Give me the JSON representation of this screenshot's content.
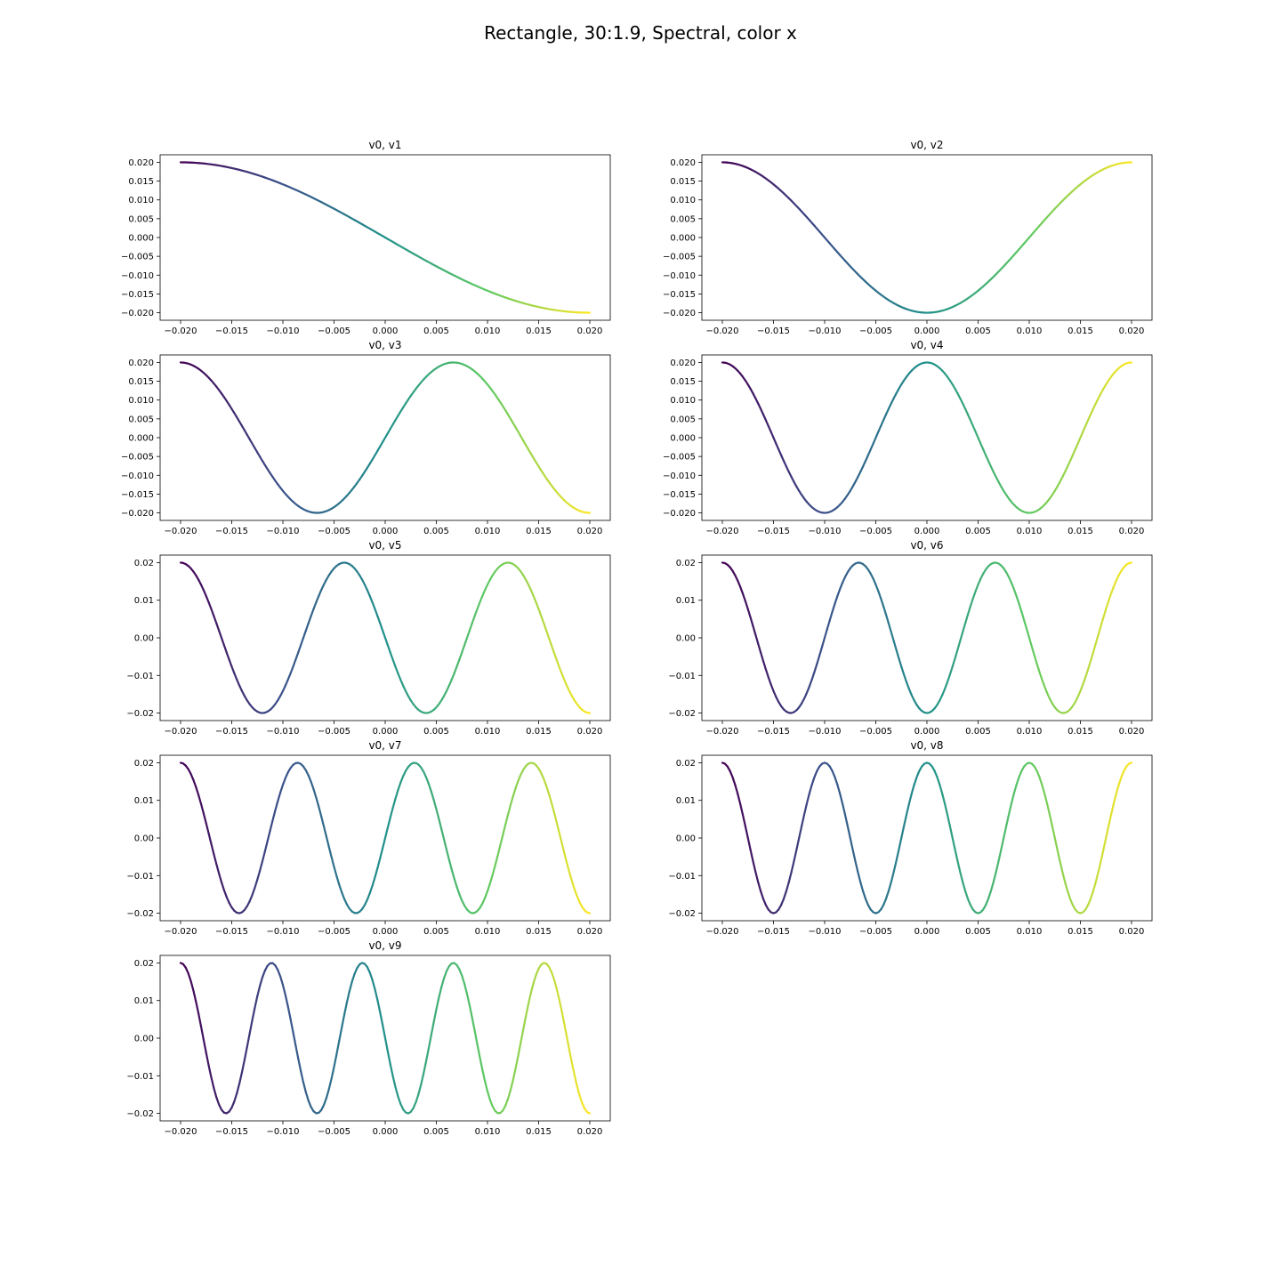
{
  "figure": {
    "title": "Rectangle, 30:1.9, Spectral, color x"
  },
  "colormap": {
    "name": "viridis",
    "stops": [
      "#440154",
      "#3b528b",
      "#21918c",
      "#5ec962",
      "#fde725"
    ]
  },
  "chart_data": [
    {
      "type": "line",
      "title": "v0, v1",
      "mode": 1,
      "xlim": [
        -0.022,
        0.022
      ],
      "ylim": [
        -0.022,
        0.022
      ],
      "x_ticks": [
        "-0.020",
        "-0.015",
        "-0.010",
        "-0.005",
        "0.000",
        "0.005",
        "0.010",
        "0.015",
        "0.020"
      ],
      "x_tick_values": [
        -0.02,
        -0.015,
        -0.01,
        -0.005,
        0.0,
        0.005,
        0.01,
        0.015,
        0.02
      ],
      "y_ticks": [
        "0.020",
        "0.015",
        "0.010",
        "0.005",
        "0.000",
        "-0.005",
        "-0.010",
        "-0.015",
        "-0.020"
      ],
      "y_tick_values": [
        0.02,
        0.015,
        0.01,
        0.005,
        0.0,
        -0.005,
        -0.01,
        -0.015,
        -0.02
      ],
      "amplitude": 0.02,
      "color": "x"
    },
    {
      "type": "line",
      "title": "v0, v2",
      "mode": 2,
      "xlim": [
        -0.022,
        0.022
      ],
      "ylim": [
        -0.022,
        0.022
      ],
      "x_ticks": [
        "-0.020",
        "-0.015",
        "-0.010",
        "-0.005",
        "0.000",
        "0.005",
        "0.010",
        "0.015",
        "0.020"
      ],
      "x_tick_values": [
        -0.02,
        -0.015,
        -0.01,
        -0.005,
        0.0,
        0.005,
        0.01,
        0.015,
        0.02
      ],
      "y_ticks": [
        "0.020",
        "0.015",
        "0.010",
        "0.005",
        "0.000",
        "-0.005",
        "-0.010",
        "-0.015",
        "-0.020"
      ],
      "y_tick_values": [
        0.02,
        0.015,
        0.01,
        0.005,
        0.0,
        -0.005,
        -0.01,
        -0.015,
        -0.02
      ],
      "amplitude": 0.02,
      "color": "x"
    },
    {
      "type": "line",
      "title": "v0, v3",
      "mode": 3,
      "xlim": [
        -0.022,
        0.022
      ],
      "ylim": [
        -0.022,
        0.022
      ],
      "x_ticks": [
        "-0.020",
        "-0.015",
        "-0.010",
        "-0.005",
        "0.000",
        "0.005",
        "0.010",
        "0.015",
        "0.020"
      ],
      "x_tick_values": [
        -0.02,
        -0.015,
        -0.01,
        -0.005,
        0.0,
        0.005,
        0.01,
        0.015,
        0.02
      ],
      "y_ticks": [
        "0.020",
        "0.015",
        "0.010",
        "0.005",
        "0.000",
        "-0.005",
        "-0.010",
        "-0.015",
        "-0.020"
      ],
      "y_tick_values": [
        0.02,
        0.015,
        0.01,
        0.005,
        0.0,
        -0.005,
        -0.01,
        -0.015,
        -0.02
      ],
      "amplitude": 0.02,
      "color": "x"
    },
    {
      "type": "line",
      "title": "v0, v4",
      "mode": 4,
      "xlim": [
        -0.022,
        0.022
      ],
      "ylim": [
        -0.022,
        0.022
      ],
      "x_ticks": [
        "-0.020",
        "-0.015",
        "-0.010",
        "-0.005",
        "0.000",
        "0.005",
        "0.010",
        "0.015",
        "0.020"
      ],
      "x_tick_values": [
        -0.02,
        -0.015,
        -0.01,
        -0.005,
        0.0,
        0.005,
        0.01,
        0.015,
        0.02
      ],
      "y_ticks": [
        "0.020",
        "0.015",
        "0.010",
        "0.005",
        "0.000",
        "-0.005",
        "-0.010",
        "-0.015",
        "-0.020"
      ],
      "y_tick_values": [
        0.02,
        0.015,
        0.01,
        0.005,
        0.0,
        -0.005,
        -0.01,
        -0.015,
        -0.02
      ],
      "amplitude": 0.02,
      "color": "x"
    },
    {
      "type": "line",
      "title": "v0, v5",
      "mode": 5,
      "xlim": [
        -0.022,
        0.022
      ],
      "ylim": [
        -0.022,
        0.022
      ],
      "x_ticks": [
        "-0.020",
        "-0.015",
        "-0.010",
        "-0.005",
        "0.000",
        "0.005",
        "0.010",
        "0.015",
        "0.020"
      ],
      "x_tick_values": [
        -0.02,
        -0.015,
        -0.01,
        -0.005,
        0.0,
        0.005,
        0.01,
        0.015,
        0.02
      ],
      "y_ticks": [
        "0.02",
        "0.01",
        "0.00",
        "-0.01",
        "-0.02"
      ],
      "y_tick_values": [
        0.02,
        0.01,
        0.0,
        -0.01,
        -0.02
      ],
      "amplitude": 0.02,
      "color": "x"
    },
    {
      "type": "line",
      "title": "v0, v6",
      "mode": 6,
      "xlim": [
        -0.022,
        0.022
      ],
      "ylim": [
        -0.022,
        0.022
      ],
      "x_ticks": [
        "-0.020",
        "-0.015",
        "-0.010",
        "-0.005",
        "0.000",
        "0.005",
        "0.010",
        "0.015",
        "0.020"
      ],
      "x_tick_values": [
        -0.02,
        -0.015,
        -0.01,
        -0.005,
        0.0,
        0.005,
        0.01,
        0.015,
        0.02
      ],
      "y_ticks": [
        "0.02",
        "0.01",
        "0.00",
        "-0.01",
        "-0.02"
      ],
      "y_tick_values": [
        0.02,
        0.01,
        0.0,
        -0.01,
        -0.02
      ],
      "amplitude": 0.02,
      "color": "x"
    },
    {
      "type": "line",
      "title": "v0, v7",
      "mode": 7,
      "xlim": [
        -0.022,
        0.022
      ],
      "ylim": [
        -0.022,
        0.022
      ],
      "x_ticks": [
        "-0.020",
        "-0.015",
        "-0.010",
        "-0.005",
        "0.000",
        "0.005",
        "0.010",
        "0.015",
        "0.020"
      ],
      "x_tick_values": [
        -0.02,
        -0.015,
        -0.01,
        -0.005,
        0.0,
        0.005,
        0.01,
        0.015,
        0.02
      ],
      "y_ticks": [
        "0.02",
        "0.01",
        "0.00",
        "-0.01",
        "-0.02"
      ],
      "y_tick_values": [
        0.02,
        0.01,
        0.0,
        -0.01,
        -0.02
      ],
      "amplitude": 0.02,
      "color": "x"
    },
    {
      "type": "line",
      "title": "v0, v8",
      "mode": 8,
      "xlim": [
        -0.022,
        0.022
      ],
      "ylim": [
        -0.022,
        0.022
      ],
      "x_ticks": [
        "-0.020",
        "-0.015",
        "-0.010",
        "-0.005",
        "0.000",
        "0.005",
        "0.010",
        "0.015",
        "0.020"
      ],
      "x_tick_values": [
        -0.02,
        -0.015,
        -0.01,
        -0.005,
        0.0,
        0.005,
        0.01,
        0.015,
        0.02
      ],
      "y_ticks": [
        "0.02",
        "0.01",
        "0.00",
        "-0.01",
        "-0.02"
      ],
      "y_tick_values": [
        0.02,
        0.01,
        0.0,
        -0.01,
        -0.02
      ],
      "amplitude": 0.02,
      "color": "x"
    },
    {
      "type": "line",
      "title": "v0, v9",
      "mode": 9,
      "xlim": [
        -0.022,
        0.022
      ],
      "ylim": [
        -0.022,
        0.022
      ],
      "x_ticks": [
        "-0.020",
        "-0.015",
        "-0.010",
        "-0.005",
        "0.000",
        "0.005",
        "0.010",
        "0.015",
        "0.020"
      ],
      "x_tick_values": [
        -0.02,
        -0.015,
        -0.01,
        -0.005,
        0.0,
        0.005,
        0.01,
        0.015,
        0.02
      ],
      "y_ticks": [
        "0.02",
        "0.01",
        "0.00",
        "-0.01",
        "-0.02"
      ],
      "y_tick_values": [
        0.02,
        0.01,
        0.0,
        -0.01,
        -0.02
      ],
      "amplitude": 0.02,
      "color": "x"
    }
  ]
}
